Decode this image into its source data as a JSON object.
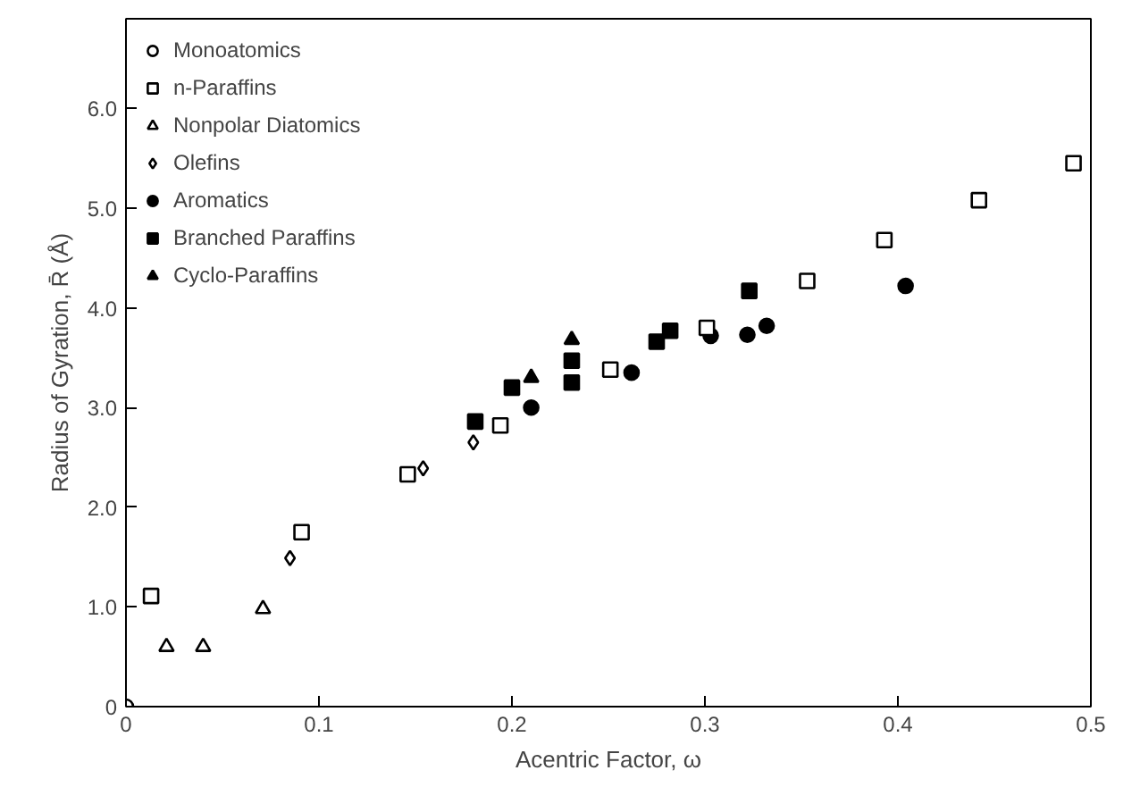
{
  "chart_data": {
    "type": "scatter",
    "xlabel": "Acentric Factor, ω",
    "ylabel": "Radius of Gyration, R̄ (Å)",
    "xlim": [
      0,
      0.5
    ],
    "ylim": [
      0,
      6.9
    ],
    "xticks": [
      {
        "value": 0,
        "label": "0"
      },
      0.1,
      0.2,
      0.3,
      0.4,
      0.5
    ],
    "yticks": [
      {
        "value": 0,
        "label": "0"
      },
      {
        "value": 1,
        "label": "1.0"
      },
      {
        "value": 2,
        "label": "2.0"
      },
      {
        "value": 3,
        "label": "3.0"
      },
      {
        "value": 4,
        "label": "4.0"
      },
      {
        "value": 5,
        "label": "5.0"
      },
      {
        "value": 6,
        "label": "6.0"
      }
    ],
    "grid": false,
    "legend": "top left",
    "series": [
      {
        "name": "Monoatomics",
        "color": "#ffffff",
        "marker": "circle",
        "x": [
          0
        ],
        "values": [
          0
        ]
      },
      {
        "name": "n-Paraffins",
        "color": "#ffffff",
        "marker": "square",
        "x": [
          0.013,
          0.091,
          0.146,
          0.194,
          0.251,
          0.301,
          0.353,
          0.393,
          0.442,
          0.491
        ],
        "values": [
          1.11,
          1.75,
          2.33,
          2.82,
          3.38,
          3.8,
          4.27,
          4.68,
          5.08,
          5.45
        ]
      },
      {
        "name": "Nonpolar Diatomics",
        "color": "#ffffff",
        "marker": "triangle",
        "x": [
          0.021,
          0.04,
          0.071
        ],
        "values": [
          0.6,
          0.6,
          0.98
        ]
      },
      {
        "name": "Olefins",
        "color": "#ffffff",
        "marker": "diamond",
        "x": [
          0.085,
          0.154,
          0.18
        ],
        "values": [
          1.49,
          2.39,
          2.65
        ]
      },
      {
        "name": "Aromatics",
        "color": "#000000",
        "marker": "circle",
        "x": [
          0.21,
          0.262,
          0.303,
          0.322,
          0.332,
          0.404
        ],
        "values": [
          3.0,
          3.35,
          3.72,
          3.73,
          3.82,
          4.22
        ]
      },
      {
        "name": "Branched Paraffins",
        "color": "#000000",
        "marker": "square",
        "x": [
          0.181,
          0.2,
          0.231,
          0.231,
          0.275,
          0.282,
          0.323
        ],
        "values": [
          2.86,
          3.2,
          3.25,
          3.47,
          3.66,
          3.77,
          4.17
        ]
      },
      {
        "name": "Cyclo-Paraffins",
        "color": "#000000",
        "marker": "triangle",
        "x": [
          0.21,
          0.231
        ],
        "values": [
          3.3,
          3.68
        ]
      }
    ]
  }
}
